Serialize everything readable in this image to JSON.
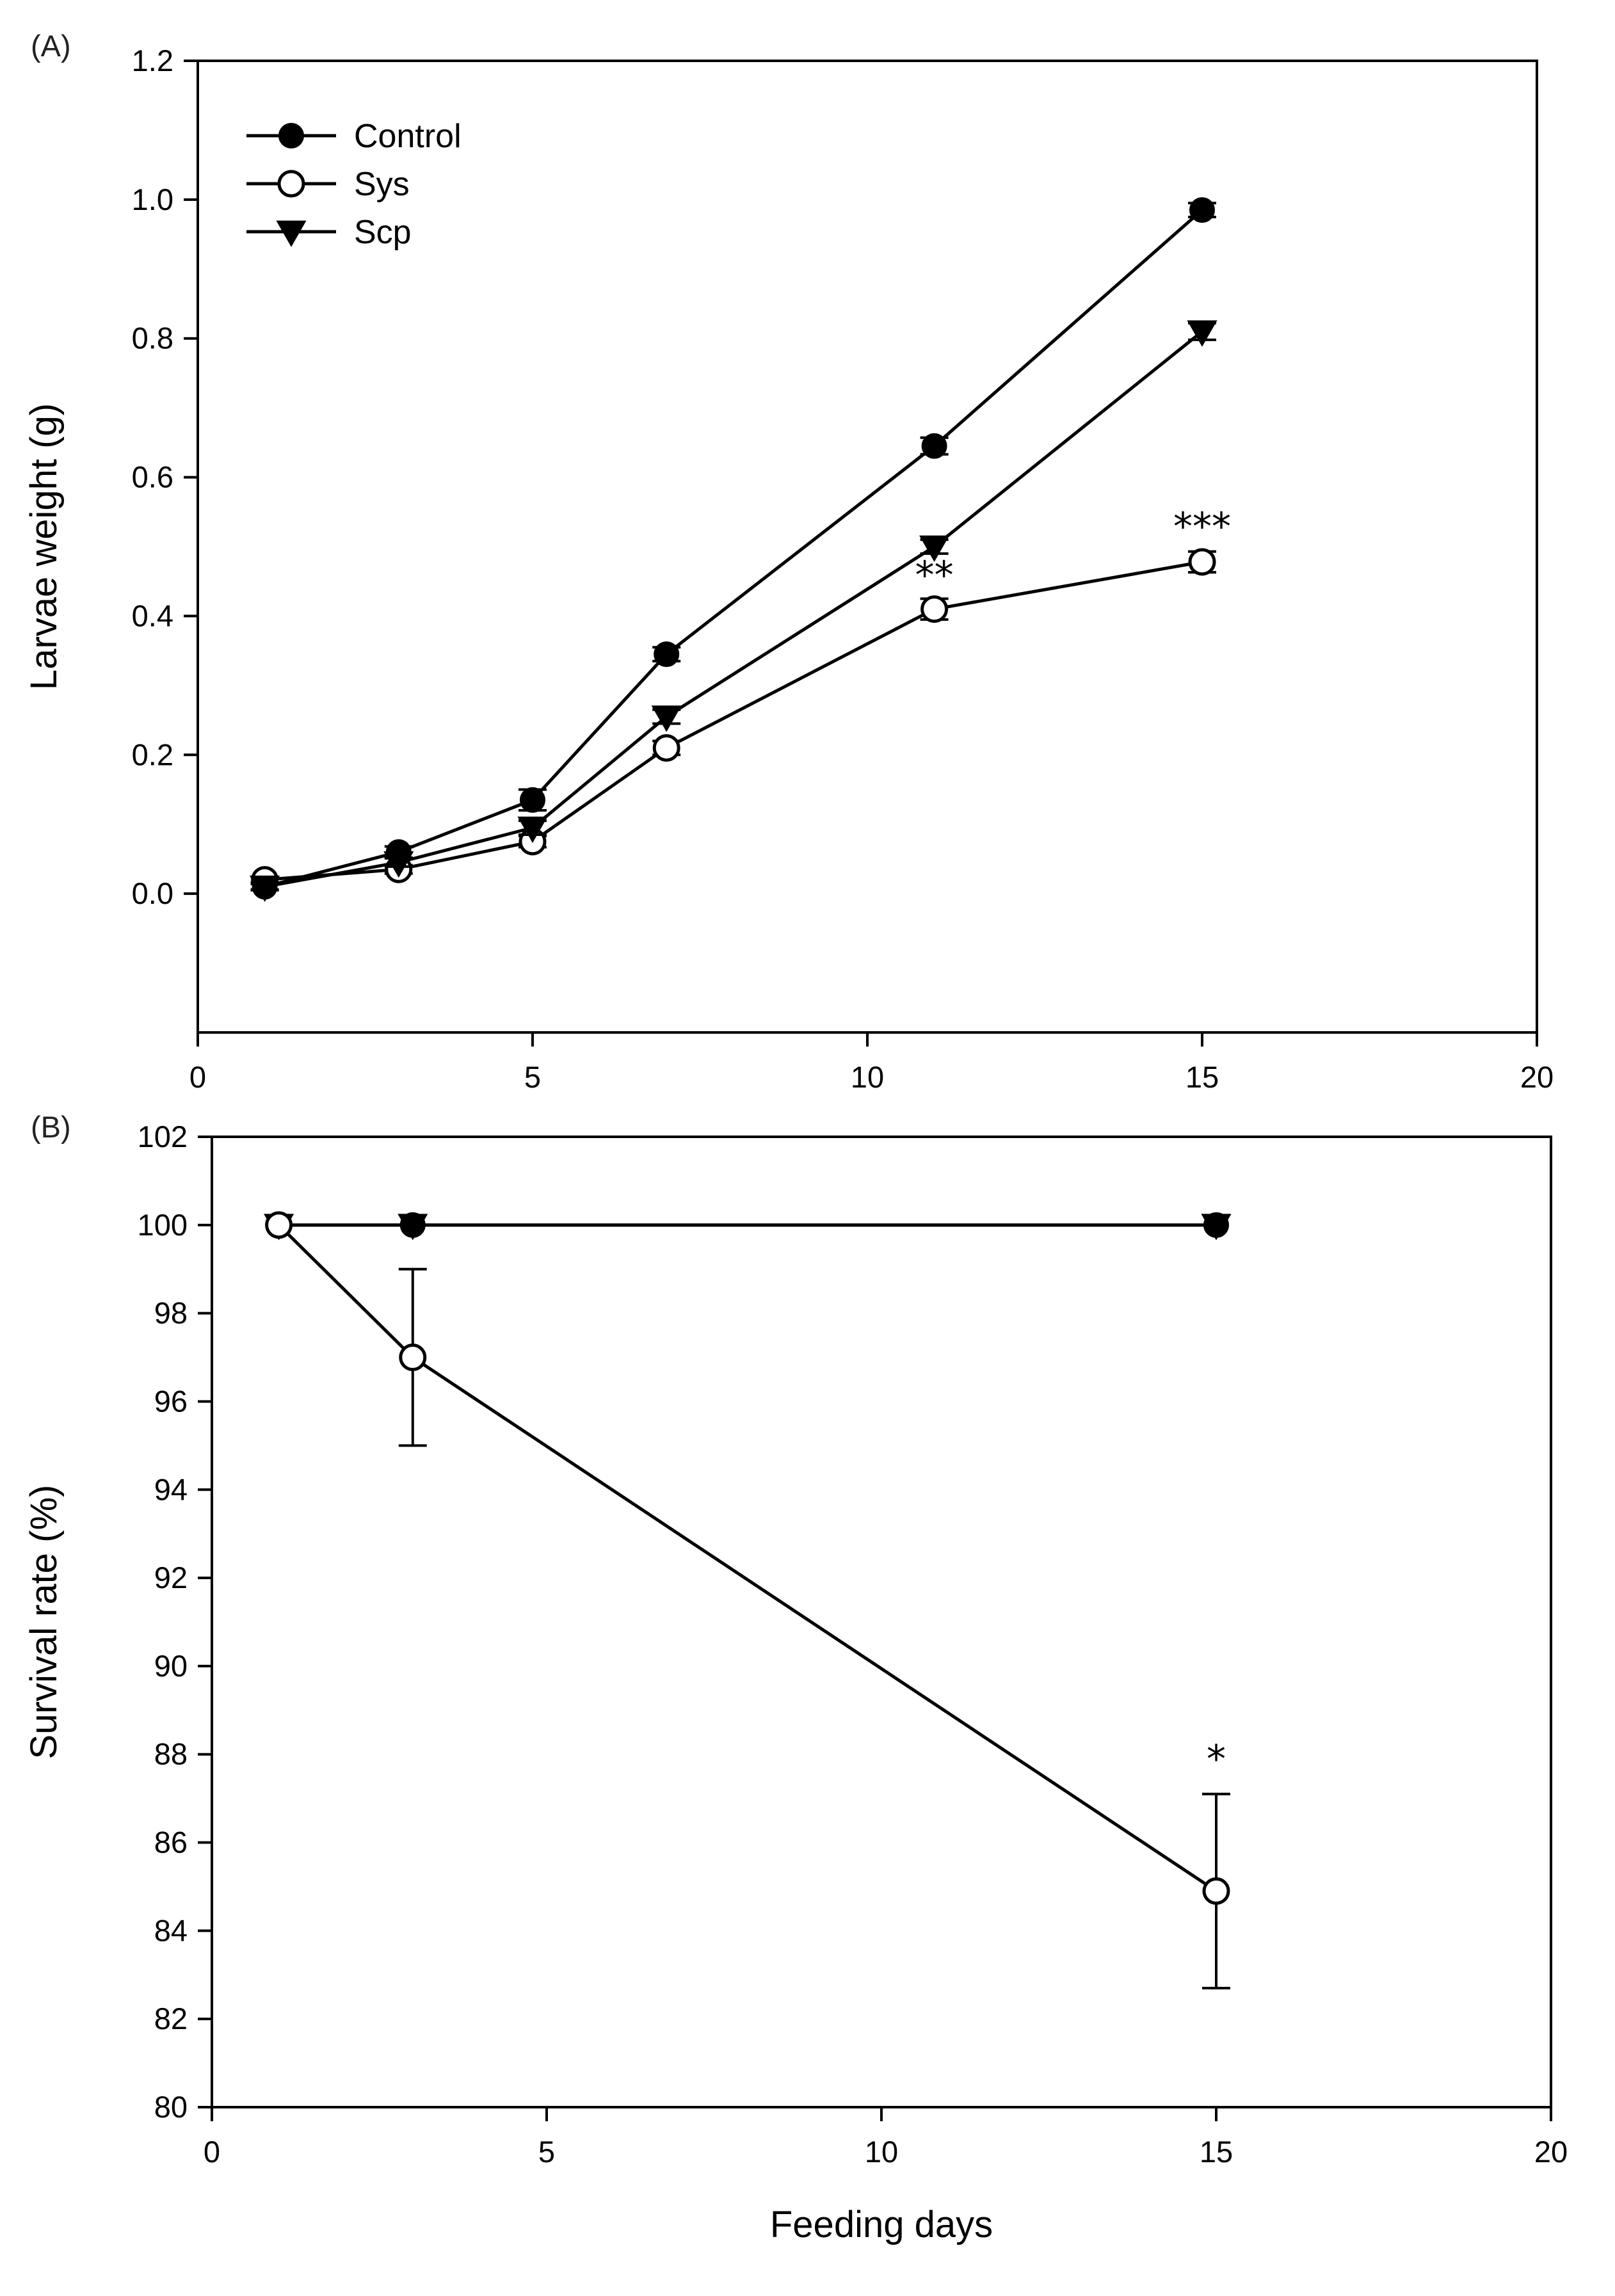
{
  "chart_data": [
    {
      "type": "line",
      "panel_label": "(A)",
      "title": "",
      "xlabel": "",
      "ylabel": "Larvae weight (g)",
      "xlim": [
        0,
        20
      ],
      "ylim": [
        -0.2,
        1.2
      ],
      "x_ticks": [
        0,
        5,
        10,
        15,
        20
      ],
      "x_tick_labels": [
        "0",
        "5",
        "10",
        "15",
        "20"
      ],
      "y_ticks": [
        0.0,
        0.2,
        0.4,
        0.6,
        0.8,
        1.0,
        1.2
      ],
      "y_tick_labels": [
        "0.0",
        "0.2",
        "0.4",
        "0.6",
        "0.8",
        "1.0",
        "1.2"
      ],
      "grid": false,
      "legend_position": "top-left",
      "legend": [
        "Control",
        "Sys",
        "Scp"
      ],
      "series": [
        {
          "name": "Control",
          "marker": "filled-circle",
          "x": [
            1,
            3,
            5,
            7,
            11,
            15
          ],
          "values": [
            0.01,
            0.06,
            0.135,
            0.345,
            0.645,
            0.985
          ],
          "errors": [
            0.005,
            0.008,
            0.015,
            0.01,
            0.012,
            0.01
          ]
        },
        {
          "name": "Sys",
          "marker": "open-circle",
          "x": [
            1,
            3,
            5,
            7,
            11,
            15
          ],
          "values": [
            0.02,
            0.035,
            0.075,
            0.21,
            0.41,
            0.478
          ],
          "errors": [
            0.004,
            0.006,
            0.008,
            0.01,
            0.015,
            0.015
          ]
        },
        {
          "name": "Scp",
          "marker": "filled-triangle-down",
          "x": [
            1,
            3,
            5,
            7,
            11,
            15
          ],
          "values": [
            0.01,
            0.045,
            0.095,
            0.255,
            0.5,
            0.81
          ],
          "errors": [
            0.004,
            0.006,
            0.01,
            0.01,
            0.01,
            0.012
          ]
        }
      ],
      "annotations": [
        {
          "text": "**",
          "x": 11,
          "y": 0.44
        },
        {
          "text": "***",
          "x": 15,
          "y": 0.51
        }
      ]
    },
    {
      "type": "line",
      "panel_label": "(B)",
      "title": "",
      "xlabel": "Feeding days",
      "ylabel": "Survival rate (%)",
      "xlim": [
        0,
        20
      ],
      "ylim": [
        80,
        102
      ],
      "x_ticks": [
        0,
        5,
        10,
        15,
        20
      ],
      "x_tick_labels": [
        "0",
        "5",
        "10",
        "15",
        "20"
      ],
      "y_ticks": [
        80,
        82,
        84,
        86,
        88,
        90,
        92,
        94,
        96,
        98,
        100,
        102
      ],
      "y_tick_labels": [
        "80",
        "82",
        "84",
        "86",
        "88",
        "90",
        "92",
        "94",
        "96",
        "98",
        "100",
        "102"
      ],
      "grid": false,
      "series": [
        {
          "name": "Control",
          "marker": "filled-circle",
          "x": [
            1,
            3,
            15
          ],
          "values": [
            100,
            100,
            100
          ],
          "errors": [
            0,
            0,
            0
          ]
        },
        {
          "name": "Scp",
          "marker": "filled-triangle-down",
          "x": [
            1,
            3,
            15
          ],
          "values": [
            100,
            100,
            100
          ],
          "errors": [
            0,
            0,
            0
          ]
        },
        {
          "name": "Sys",
          "marker": "open-circle",
          "x": [
            1,
            3,
            15
          ],
          "values": [
            100,
            97,
            84.9
          ],
          "errors": [
            0,
            2,
            2.2
          ]
        }
      ],
      "annotations": [
        {
          "text": "*",
          "x": 15,
          "y": 87.6
        }
      ]
    }
  ]
}
